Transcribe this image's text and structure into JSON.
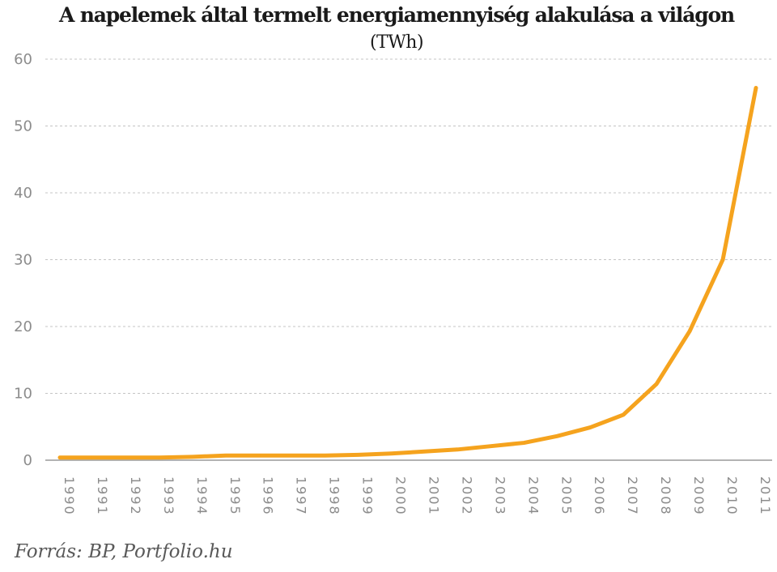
{
  "chart_data": {
    "type": "line",
    "title": "A napelemek által termelt energiamennyiség alakulása a világon",
    "subtitle": "(TWh)",
    "xlabel": "",
    "ylabel": "",
    "ylim": [
      0,
      60
    ],
    "yticks": [
      0,
      10,
      20,
      30,
      40,
      50,
      60
    ],
    "grid": true,
    "legend": "none",
    "categories": [
      "1990",
      "1991",
      "1992",
      "1993",
      "1994",
      "1995",
      "1996",
      "1997",
      "1998",
      "1999",
      "2000",
      "2001",
      "2002",
      "2003",
      "2004",
      "2005",
      "2006",
      "2007",
      "2008",
      "2009",
      "2010",
      "2011"
    ],
    "series": [
      {
        "color": "#f5a31e",
        "values": [
          0.4,
          0.4,
          0.4,
          0.4,
          0.5,
          0.7,
          0.7,
          0.7,
          0.7,
          0.8,
          1.0,
          1.3,
          1.6,
          2.1,
          2.6,
          3.6,
          4.9,
          6.8,
          11.4,
          19.3,
          30.0,
          55.7
        ]
      }
    ]
  },
  "source": "Forrás: BP, Portfolio.hu"
}
